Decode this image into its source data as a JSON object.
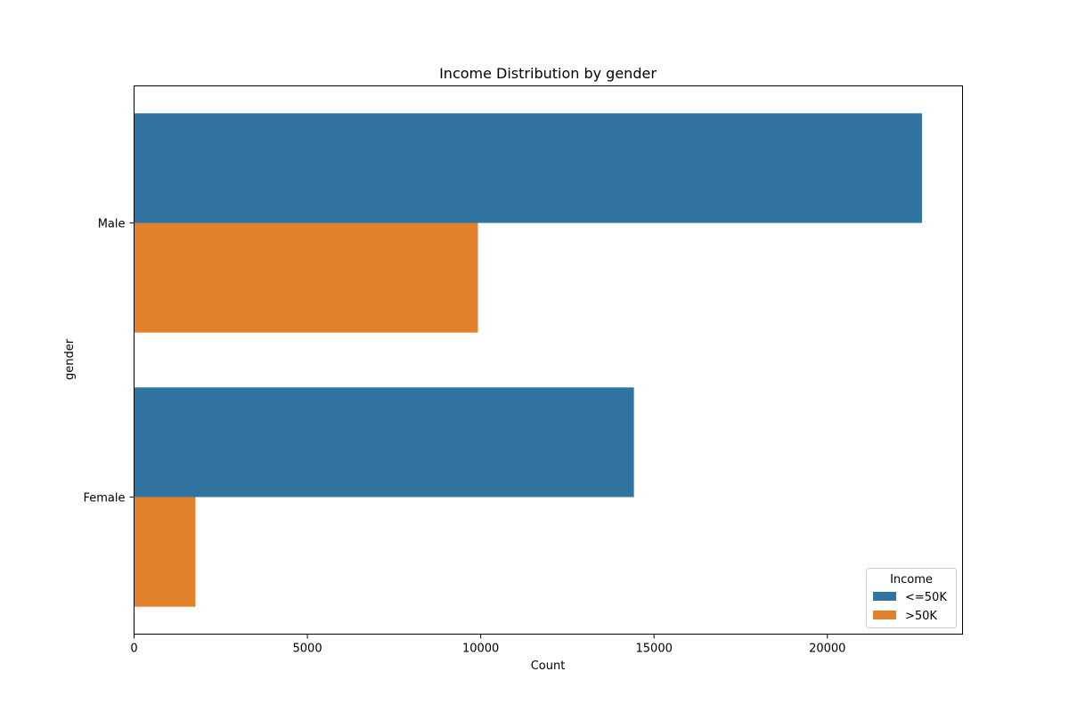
{
  "chart_data": {
    "type": "bar",
    "orientation": "horizontal",
    "title": "Income Distribution by gender",
    "xlabel": "Count",
    "ylabel": "gender",
    "categories": [
      "Male",
      "Female"
    ],
    "series": [
      {
        "name": "<=50K",
        "values": [
          22730,
          14420
        ],
        "color": "#3274a1"
      },
      {
        "name": ">50K",
        "values": [
          9920,
          1770
        ],
        "color": "#e1812c"
      }
    ],
    "xlim": [
      0,
      23900
    ],
    "xticks": [
      0,
      5000,
      10000,
      15000,
      20000
    ],
    "grid": false,
    "legend": {
      "title": "Income",
      "placement": "bottom-right"
    }
  }
}
